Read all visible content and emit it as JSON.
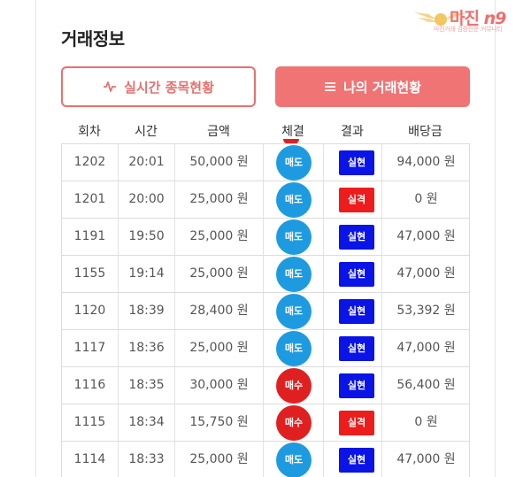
{
  "title": "거래정보",
  "logo": {
    "name": "마진",
    "tag": "n9",
    "subtitle": "마진거래 검증전문 커뮤니티"
  },
  "buttons": {
    "live": {
      "label": "실시간 종목현황",
      "icon": "pulse-icon"
    },
    "mine": {
      "label": "나의 거래현황",
      "icon": "list-icon"
    }
  },
  "headers": [
    "회차",
    "시간",
    "금액",
    "체결",
    "결과",
    "배당금"
  ],
  "rows": [
    {
      "round": "1202",
      "time": "20:01",
      "amount": "50,000 원",
      "trade": "매도",
      "result": "실현",
      "payout": "94,000 원"
    },
    {
      "round": "1201",
      "time": "20:00",
      "amount": "25,000 원",
      "trade": "매도",
      "result": "실격",
      "payout": "0 원"
    },
    {
      "round": "1191",
      "time": "19:50",
      "amount": "25,000 원",
      "trade": "매도",
      "result": "실현",
      "payout": "47,000 원"
    },
    {
      "round": "1155",
      "time": "19:14",
      "amount": "25,000 원",
      "trade": "매도",
      "result": "실현",
      "payout": "47,000 원"
    },
    {
      "round": "1120",
      "time": "18:39",
      "amount": "28,400 원",
      "trade": "매도",
      "result": "실현",
      "payout": "53,392 원"
    },
    {
      "round": "1117",
      "time": "18:36",
      "amount": "25,000 원",
      "trade": "매도",
      "result": "실현",
      "payout": "47,000 원"
    },
    {
      "round": "1116",
      "time": "18:35",
      "amount": "30,000 원",
      "trade": "매수",
      "result": "실현",
      "payout": "56,400 원"
    },
    {
      "round": "1115",
      "time": "18:34",
      "amount": "15,750 원",
      "trade": "매수",
      "result": "실격",
      "payout": "0 원"
    },
    {
      "round": "1114",
      "time": "18:33",
      "amount": "25,000 원",
      "trade": "매도",
      "result": "실현",
      "payout": "47,000 원"
    }
  ],
  "colors": {
    "sell": "#1e9be0",
    "buy": "#e02020",
    "win": "#0a14e6",
    "lose": "#ee1c1c",
    "accent": "#f07474"
  }
}
